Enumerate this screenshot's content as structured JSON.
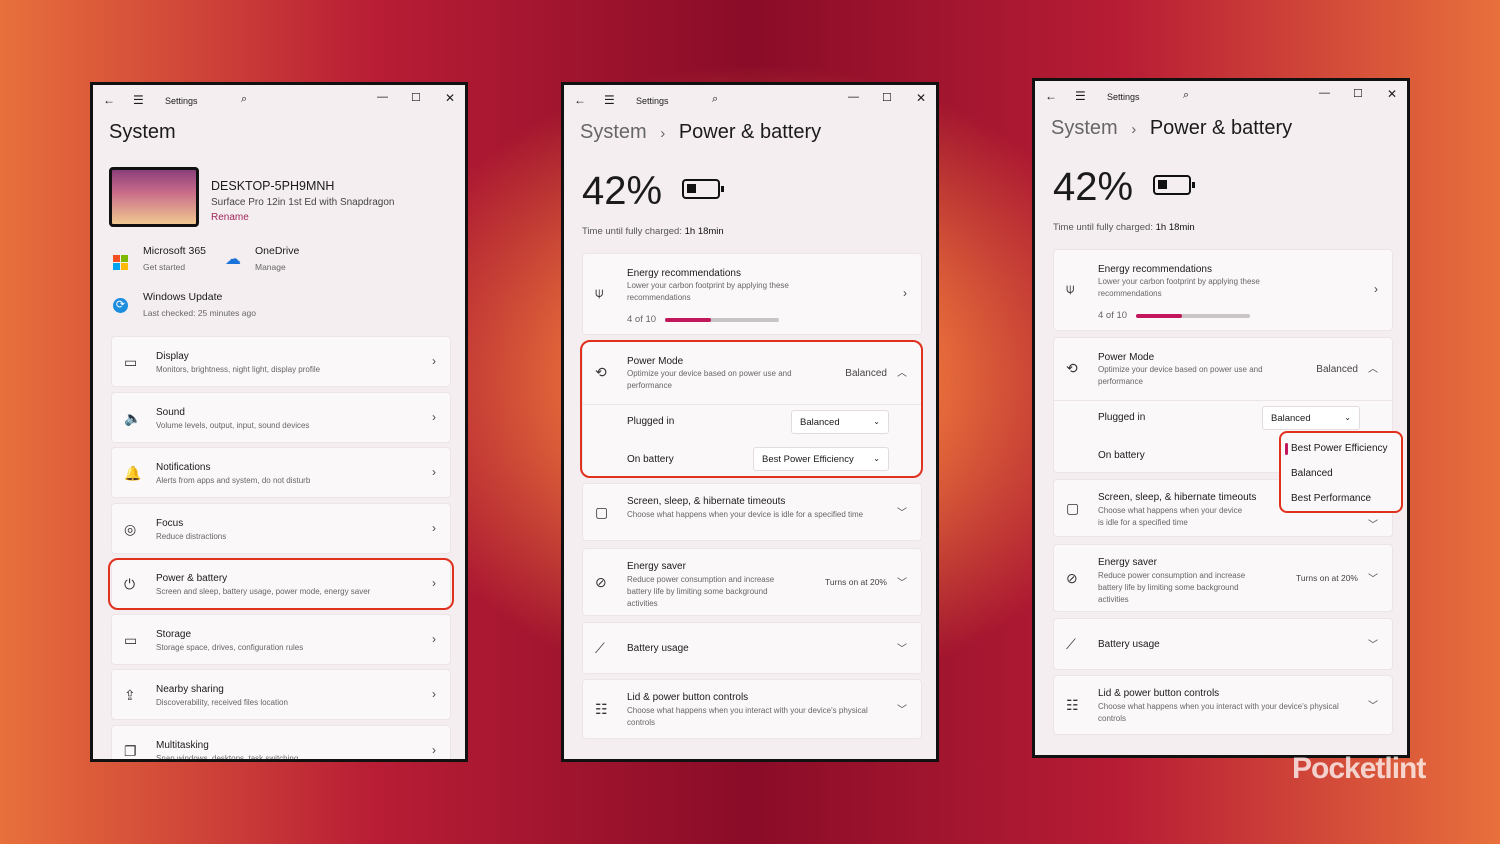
{
  "app_title": "Settings",
  "system": {
    "title": "System",
    "device": {
      "name": "DESKTOP-5PH9MNH",
      "model": "Surface Pro 12in 1st Ed with Snapdragon",
      "rename": "Rename"
    },
    "quick": [
      {
        "icon": "microsoft-365-icon",
        "title": "Microsoft 365",
        "sub": "Get started"
      },
      {
        "icon": "onedrive-icon",
        "title": "OneDrive",
        "sub": "Manage"
      },
      {
        "icon": "windows-update-icon",
        "title": "Windows Update",
        "sub": "Last checked: 25 minutes ago"
      }
    ],
    "items": [
      {
        "icon": "display-icon",
        "glyph": "▭",
        "title": "Display",
        "sub": "Monitors, brightness, night light, display profile"
      },
      {
        "icon": "sound-icon",
        "glyph": "🔈",
        "title": "Sound",
        "sub": "Volume levels, output, input, sound devices"
      },
      {
        "icon": "notifications-icon",
        "glyph": "🔔",
        "title": "Notifications",
        "sub": "Alerts from apps and system, do not disturb"
      },
      {
        "icon": "focus-icon",
        "glyph": "◎",
        "title": "Focus",
        "sub": "Reduce distractions"
      },
      {
        "icon": "power-icon",
        "glyph": "⏻",
        "title": "Power & battery",
        "sub": "Screen and sleep, battery usage, power mode, energy saver"
      },
      {
        "icon": "storage-icon",
        "glyph": "▭",
        "title": "Storage",
        "sub": "Storage space, drives, configuration rules"
      },
      {
        "icon": "nearby-sharing-icon",
        "glyph": "⇪",
        "title": "Nearby sharing",
        "sub": "Discoverability, received files location"
      },
      {
        "icon": "multitasking-icon",
        "glyph": "❐",
        "title": "Multitasking",
        "sub": "Snap windows, desktops, task switching"
      }
    ]
  },
  "power": {
    "breadcrumb_parent": "System",
    "breadcrumb_sep": "›",
    "title": "Power & battery",
    "battery_percent": "42%",
    "charge_label": "Time until fully charged:",
    "charge_time": "1h 18min",
    "energy_rec": {
      "title": "Energy recommendations",
      "sub": "Lower your carbon footprint by applying these recommendations",
      "progress_text": "4 of 10",
      "progress": 0.4
    },
    "power_mode": {
      "title": "Power Mode",
      "sub": "Optimize your device based on power use and performance",
      "value": "Balanced",
      "plugged_in_label": "Plugged in",
      "plugged_in_value": "Balanced",
      "on_battery_label": "On battery",
      "on_battery_value": "Best Power Efficiency",
      "options": [
        "Best Power Efficiency",
        "Balanced",
        "Best Performance"
      ]
    },
    "screen": {
      "title": "Screen, sleep, & hibernate timeouts",
      "sub": "Choose what happens when your device is idle for a specified time"
    },
    "saver": {
      "title": "Energy saver",
      "sub": "Reduce power consumption and increase battery life by limiting some background activities",
      "value": "Turns on at 20%"
    },
    "usage": {
      "title": "Battery usage"
    },
    "lid": {
      "title": "Lid & power button controls",
      "sub": "Choose what happens when you interact with your device's physical controls"
    }
  },
  "accent": "#c2185b",
  "highlight": "#e0311e",
  "watermark": "Pocketlint"
}
